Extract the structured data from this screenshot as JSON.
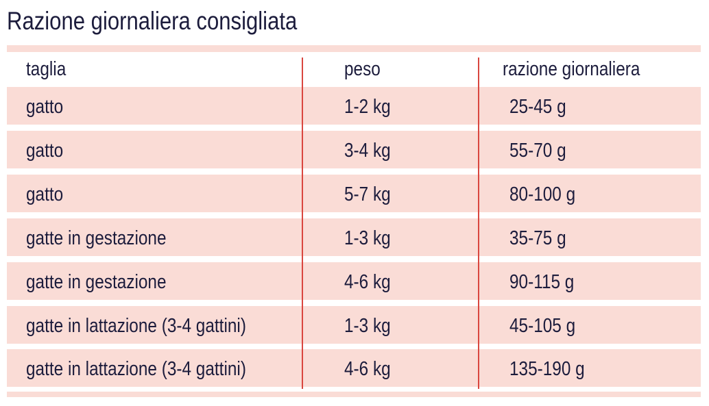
{
  "header": {
    "title": "Razione giornaliera consigliata"
  },
  "table": {
    "columns": [
      "taglia",
      "peso",
      "razione giornaliera"
    ],
    "rows": [
      [
        "gatto",
        "1-2 kg",
        "25-45 g"
      ],
      [
        "gatto",
        "3-4 kg",
        "55-70 g"
      ],
      [
        "gatto",
        "5-7 kg",
        "80-100 g"
      ],
      [
        "gatte in gestazione",
        "1-3 kg",
        "35-75 g"
      ],
      [
        "gatte in gestazione",
        "4-6 kg",
        "90-115 g"
      ],
      [
        "gatte in lattazione (3-4 gattini)",
        "1-3 kg",
        "45-105 g"
      ],
      [
        "gatte in lattazione (3-4 gattini)",
        "4-6 kg",
        "135-190 g"
      ]
    ]
  }
}
